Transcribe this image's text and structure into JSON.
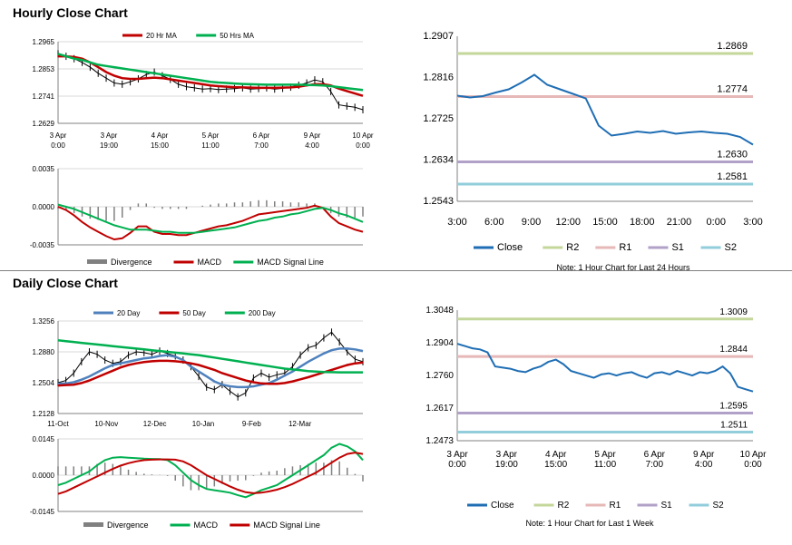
{
  "sections": {
    "hourly_title": "Hourly Close Chart",
    "daily_title": "Daily Close Chart"
  },
  "chart_data": [
    {
      "id": "hourly_price",
      "type": "line",
      "ylim": [
        1.2629,
        1.2965
      ],
      "yticks": [
        "1.2965",
        "1.2853",
        "1.2741",
        "1.2629"
      ],
      "xticks": [
        [
          "3 Apr",
          "0:00"
        ],
        [
          "3 Apr",
          "19:00"
        ],
        [
          "4 Apr",
          "15:00"
        ],
        [
          "5 Apr",
          "11:00"
        ],
        [
          "6 Apr",
          "7:00"
        ],
        [
          "9 Apr",
          "4:00"
        ],
        [
          "10 Apr",
          "0:00"
        ]
      ],
      "legend": [
        "20 Hr MA",
        "50 Hrs MA"
      ],
      "colors": {
        "ma20": "#c00000",
        "ma50": "#00b050",
        "price": "#000000"
      },
      "series": [
        {
          "name": "Close",
          "values": [
            1.2915,
            1.2905,
            1.2895,
            1.288,
            1.286,
            1.2835,
            1.2815,
            1.2795,
            1.279,
            1.28,
            1.2812,
            1.283,
            1.284,
            1.2825,
            1.281,
            1.279,
            1.278,
            1.2775,
            1.277,
            1.2772,
            1.2768,
            1.277,
            1.2772,
            1.2775,
            1.277,
            1.2772,
            1.2775,
            1.277,
            1.2773,
            1.2778,
            1.2786,
            1.2795,
            1.2808,
            1.28,
            1.276,
            1.2705,
            1.27,
            1.2695,
            1.2685
          ]
        },
        {
          "name": "20 Hr MA",
          "values": [
            1.2905,
            1.2905,
            1.2902,
            1.2895,
            1.288,
            1.286,
            1.284,
            1.2825,
            1.2815,
            1.2812,
            1.2812,
            1.2815,
            1.2817,
            1.2815,
            1.281,
            1.2805,
            1.28,
            1.2795,
            1.279,
            1.2785,
            1.2782,
            1.278,
            1.2778,
            1.2777,
            1.2776,
            1.2775,
            1.2775,
            1.2775,
            1.2776,
            1.2777,
            1.278,
            1.2785,
            1.279,
            1.279,
            1.2785,
            1.2772,
            1.2762,
            1.2752,
            1.2742
          ]
        },
        {
          "name": "50 Hrs MA",
          "values": [
            1.2915,
            1.2905,
            1.2895,
            1.289,
            1.288,
            1.287,
            1.2865,
            1.286,
            1.2855,
            1.285,
            1.2845,
            1.284,
            1.2835,
            1.283,
            1.2825,
            1.282,
            1.2815,
            1.281,
            1.2805,
            1.28,
            1.2797,
            1.2795,
            1.2793,
            1.2791,
            1.279,
            1.2789,
            1.2788,
            1.2788,
            1.2788,
            1.2788,
            1.2788,
            1.2787,
            1.2786,
            1.2785,
            1.2782,
            1.2778,
            1.2774,
            1.277,
            1.2766
          ]
        }
      ]
    },
    {
      "id": "hourly_macd",
      "type": "bar+line",
      "ylim": [
        -0.0035,
        0.0035
      ],
      "yticks": [
        "0.0035",
        "0.0000",
        "-0.0035"
      ],
      "legend": [
        "Divergence",
        "MACD",
        "MACD Signal Line"
      ],
      "colors": {
        "divergence": "#808080",
        "macd": "#c00000",
        "signal": "#00b050"
      },
      "series": [
        {
          "name": "MACD",
          "values": [
            0.0,
            -0.0003,
            -0.0008,
            -0.0014,
            -0.0019,
            -0.0023,
            -0.0027,
            -0.003,
            -0.0029,
            -0.0024,
            -0.0018,
            -0.0018,
            -0.0023,
            -0.0025,
            -0.0025,
            -0.0026,
            -0.0026,
            -0.0024,
            -0.0022,
            -0.002,
            -0.0018,
            -0.0017,
            -0.0015,
            -0.0013,
            -0.001,
            -0.0007,
            -0.0006,
            -0.0005,
            -0.0004,
            -0.0003,
            -0.0002,
            -0.0001,
            0.0001,
            -0.0001,
            -0.0009,
            -0.0015,
            -0.0018,
            -0.0021,
            -0.0023
          ]
        },
        {
          "name": "MACD Signal Line",
          "values": [
            0.0002,
            0.0,
            -0.0002,
            -0.0005,
            -0.0008,
            -0.0011,
            -0.0014,
            -0.0017,
            -0.0019,
            -0.0021,
            -0.0021,
            -0.0021,
            -0.0022,
            -0.0023,
            -0.0023,
            -0.0024,
            -0.0024,
            -0.0024,
            -0.0023,
            -0.0022,
            -0.0021,
            -0.002,
            -0.0019,
            -0.0017,
            -0.0015,
            -0.0013,
            -0.0012,
            -0.001,
            -0.0009,
            -0.0007,
            -0.0006,
            -0.0004,
            -0.0002,
            -0.0001,
            -0.0003,
            -0.0006,
            -0.0008,
            -0.0011,
            -0.0014
          ]
        }
      ]
    },
    {
      "id": "hourly_levels",
      "type": "line",
      "ylim": [
        1.2543,
        1.2907
      ],
      "yticks": [
        "1.2907",
        "1.2816",
        "1.2725",
        "1.2634",
        "1.2543"
      ],
      "xticks": [
        "3:00",
        "6:00",
        "9:00",
        "12:00",
        "15:00",
        "18:00",
        "21:00",
        "0:00",
        "3:00"
      ],
      "levels": [
        {
          "name": "R2",
          "value": 1.2869,
          "label": "1.2869",
          "color": "#c4d79b"
        },
        {
          "name": "R1",
          "value": 1.2774,
          "label": "1.2774",
          "color": "#e6b8b7"
        },
        {
          "name": "S1",
          "value": 1.263,
          "label": "1.2630",
          "color": "#b1a0c7"
        },
        {
          "name": "S2",
          "value": 1.2581,
          "label": "1.2581",
          "color": "#92cddc"
        }
      ],
      "legend": [
        "Close",
        "R2",
        "R1",
        "S1",
        "S2"
      ],
      "note": "Note: 1 Hour Chart for Last 24 Hours",
      "colors": {
        "close": "#1f6eb4"
      },
      "series": [
        {
          "name": "Close",
          "values": [
            1.2776,
            1.2772,
            1.2775,
            1.2783,
            1.279,
            1.2805,
            1.2822,
            1.28,
            1.279,
            1.278,
            1.277,
            1.271,
            1.2688,
            1.2692,
            1.2697,
            1.2694,
            1.2698,
            1.2692,
            1.2695,
            1.2697,
            1.2694,
            1.2692,
            1.2685,
            1.2668
          ]
        }
      ]
    },
    {
      "id": "daily_price",
      "type": "line",
      "ylim": [
        1.2128,
        1.3256
      ],
      "yticks": [
        "1.3256",
        "1.2880",
        "1.2504",
        "1.2128"
      ],
      "xticks": [
        "11-Oct",
        "10-Nov",
        "12-Dec",
        "10-Jan",
        "9-Feb",
        "12-Mar"
      ],
      "legend": [
        "20 Day",
        "50 Day",
        "200 Day"
      ],
      "colors": {
        "ma20": "#4f81bd",
        "ma50": "#c00000",
        "ma200": "#00b050",
        "price": "#000000"
      },
      "series": [
        {
          "name": "Close",
          "values": [
            1.2504,
            1.253,
            1.262,
            1.276,
            1.288,
            1.285,
            1.278,
            1.274,
            1.276,
            1.284,
            1.288,
            1.287,
            1.285,
            1.289,
            1.286,
            1.283,
            1.278,
            1.27,
            1.258,
            1.245,
            1.242,
            1.248,
            1.24,
            1.233,
            1.238,
            1.256,
            1.262,
            1.257,
            1.26,
            1.262,
            1.27,
            1.284,
            1.293,
            1.296,
            1.305,
            1.312,
            1.3,
            1.288,
            1.279,
            1.276
          ]
        },
        {
          "name": "20 Day",
          "values": [
            1.249,
            1.2495,
            1.251,
            1.254,
            1.258,
            1.263,
            1.268,
            1.272,
            1.274,
            1.276,
            1.278,
            1.28,
            1.281,
            1.283,
            1.284,
            1.282,
            1.278,
            1.27,
            1.264,
            1.258,
            1.252,
            1.248,
            1.246,
            1.245,
            1.245,
            1.246,
            1.248,
            1.25,
            1.254,
            1.259,
            1.264,
            1.27,
            1.276,
            1.281,
            1.286,
            1.29,
            1.292,
            1.292,
            1.291,
            1.289
          ]
        },
        {
          "name": "50 Day",
          "values": [
            1.247,
            1.2475,
            1.248,
            1.25,
            1.253,
            1.257,
            1.261,
            1.265,
            1.269,
            1.272,
            1.274,
            1.2755,
            1.2765,
            1.277,
            1.277,
            1.2765,
            1.2755,
            1.274,
            1.272,
            1.269,
            1.266,
            1.262,
            1.259,
            1.256,
            1.253,
            1.251,
            1.2495,
            1.249,
            1.249,
            1.25,
            1.252,
            1.2545,
            1.257,
            1.26,
            1.263,
            1.266,
            1.269,
            1.272,
            1.274,
            1.275
          ]
        },
        {
          "name": "200 Day",
          "values": [
            1.302,
            1.301,
            1.3,
            1.299,
            1.298,
            1.297,
            1.296,
            1.295,
            1.294,
            1.293,
            1.292,
            1.291,
            1.29,
            1.289,
            1.288,
            1.287,
            1.286,
            1.285,
            1.284,
            1.2825,
            1.281,
            1.2795,
            1.278,
            1.2765,
            1.275,
            1.2735,
            1.272,
            1.2705,
            1.269,
            1.2675,
            1.2665,
            1.2655,
            1.2645,
            1.264,
            1.2635,
            1.2632,
            1.263,
            1.263,
            1.263,
            1.263
          ]
        }
      ]
    },
    {
      "id": "daily_macd",
      "type": "bar+line",
      "ylim": [
        -0.0145,
        0.0145
      ],
      "yticks": [
        "0.0145",
        "0.0000",
        "-0.0145"
      ],
      "legend": [
        "Divergence",
        "MACD",
        "MACD Signal Line"
      ],
      "colors": {
        "divergence": "#808080",
        "macd": "#00b050",
        "signal": "#c00000"
      },
      "series": [
        {
          "name": "MACD",
          "values": [
            -0.004,
            -0.003,
            -0.0015,
            0.0,
            0.0015,
            0.004,
            0.006,
            0.007,
            0.0072,
            0.007,
            0.0068,
            0.0066,
            0.0065,
            0.0064,
            0.006,
            0.004,
            0.001,
            -0.002,
            -0.004,
            -0.0055,
            -0.006,
            -0.0065,
            -0.007,
            -0.008,
            -0.0088,
            -0.0075,
            -0.006,
            -0.005,
            -0.004,
            -0.002,
            0.0,
            0.002,
            0.004,
            0.006,
            0.008,
            0.011,
            0.0125,
            0.0115,
            0.0095,
            0.006
          ]
        },
        {
          "name": "MACD Signal Line",
          "values": [
            -0.0075,
            -0.0065,
            -0.005,
            -0.0035,
            -0.002,
            -0.0005,
            0.001,
            0.0025,
            0.0038,
            0.0048,
            0.0055,
            0.006,
            0.0062,
            0.0063,
            0.0063,
            0.0062,
            0.0055,
            0.004,
            0.002,
            0.0,
            -0.0015,
            -0.003,
            -0.0045,
            -0.0058,
            -0.0068,
            -0.0072,
            -0.007,
            -0.0065,
            -0.0058,
            -0.0048,
            -0.0035,
            -0.002,
            -0.0005,
            0.001,
            0.003,
            0.005,
            0.007,
            0.0085,
            0.009,
            0.0085
          ]
        }
      ]
    },
    {
      "id": "weekly_levels",
      "type": "line",
      "ylim": [
        1.2473,
        1.3048
      ],
      "yticks": [
        "1.3048",
        "1.2904",
        "1.2760",
        "1.2617",
        "1.2473"
      ],
      "xticks": [
        [
          "3 Apr",
          "0:00"
        ],
        [
          "3 Apr",
          "19:00"
        ],
        [
          "4 Apr",
          "15:00"
        ],
        [
          "5 Apr",
          "11:00"
        ],
        [
          "6 Apr",
          "7:00"
        ],
        [
          "9 Apr",
          "4:00"
        ],
        [
          "10 Apr",
          "0:00"
        ]
      ],
      "levels": [
        {
          "name": "R2",
          "value": 1.3009,
          "label": "1.3009",
          "color": "#c4d79b"
        },
        {
          "name": "R1",
          "value": 1.2844,
          "label": "1.2844",
          "color": "#e6b8b7"
        },
        {
          "name": "S1",
          "value": 1.2595,
          "label": "1.2595",
          "color": "#b1a0c7"
        },
        {
          "name": "S2",
          "value": 1.2511,
          "label": "1.2511",
          "color": "#92cddc"
        }
      ],
      "legend": [
        "Close",
        "R2",
        "R1",
        "S1",
        "S2"
      ],
      "note": "Note: 1 Hour Chart for Last 1 Week",
      "colors": {
        "close": "#1f6eb4"
      },
      "series": [
        {
          "name": "Close",
          "values": [
            1.29,
            1.289,
            1.288,
            1.2875,
            1.2862,
            1.28,
            1.2795,
            1.279,
            1.278,
            1.2775,
            1.279,
            1.28,
            1.282,
            1.283,
            1.281,
            1.278,
            1.277,
            1.276,
            1.275,
            1.2765,
            1.277,
            1.276,
            1.277,
            1.2775,
            1.276,
            1.275,
            1.277,
            1.2775,
            1.2765,
            1.278,
            1.277,
            1.276,
            1.2775,
            1.277,
            1.278,
            1.28,
            1.277,
            1.271,
            1.27,
            1.269
          ]
        }
      ]
    }
  ]
}
